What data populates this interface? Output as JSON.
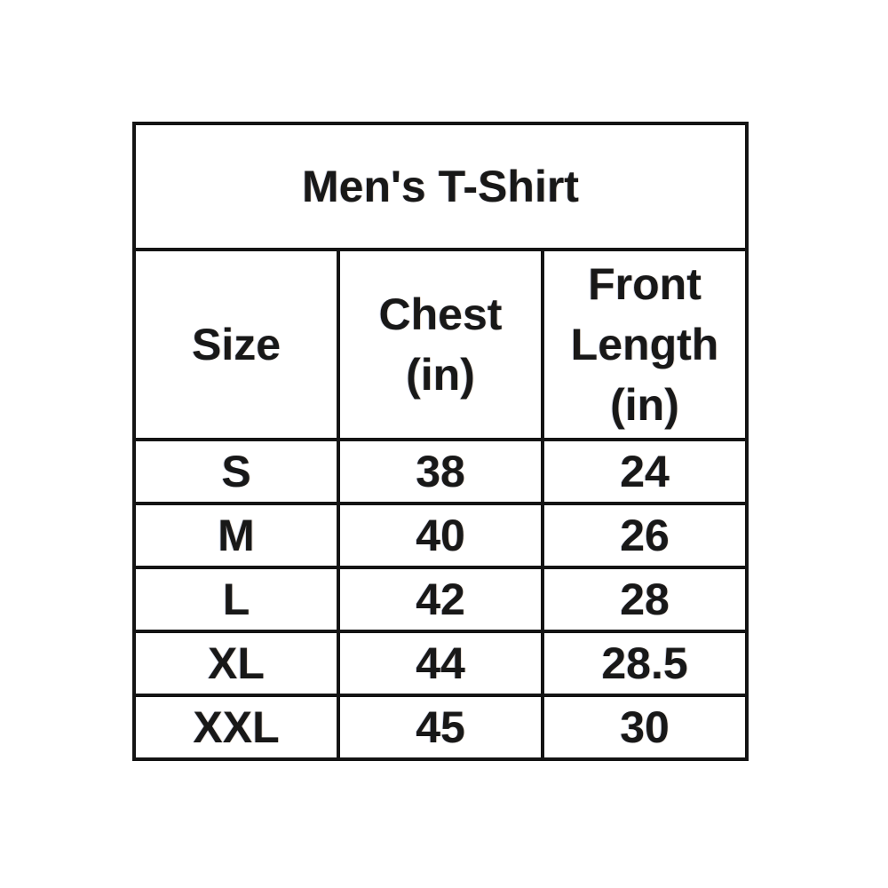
{
  "page": {
    "background_color": "#ffffff",
    "text_color": "#181818",
    "border_color": "#141414"
  },
  "table": {
    "title": "Men's T-Shirt",
    "headers": {
      "size": "Size",
      "chest": "Chest\n(in)",
      "front_length": "Front\nLength\n(in)"
    },
    "rows": [
      {
        "size": "S",
        "chest": "38",
        "front_length": "24"
      },
      {
        "size": "M",
        "chest": "40",
        "front_length": "26"
      },
      {
        "size": "L",
        "chest": "42",
        "front_length": "28"
      },
      {
        "size": "XL",
        "chest": "44",
        "front_length": "28.5"
      },
      {
        "size": "XXL",
        "chest": "45",
        "front_length": "30"
      }
    ]
  }
}
